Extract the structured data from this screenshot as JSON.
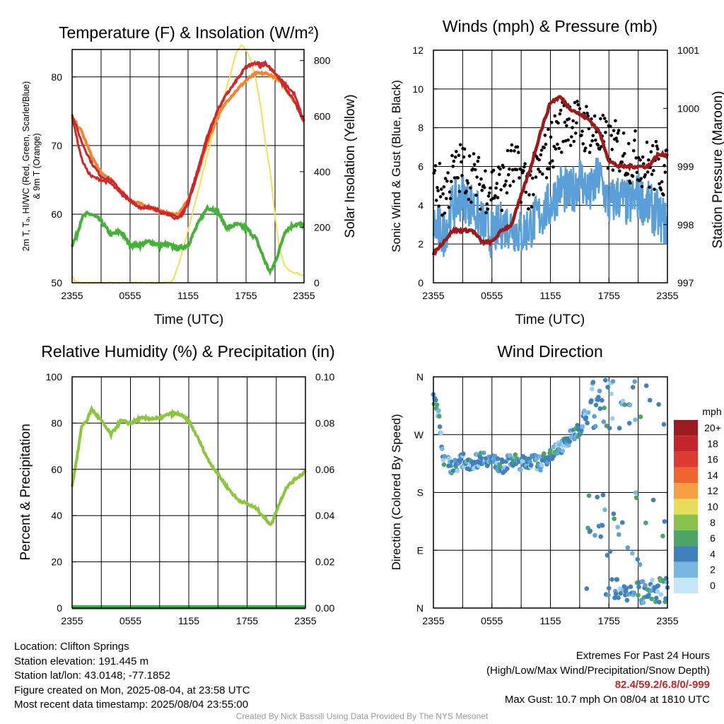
{
  "panels": {
    "temperature": {
      "title": "Temperature (F) & Insolation (W/m²)",
      "ylabel_left_line1": "2m T, Tₔ, HI/WC (Red, Green, Scarlet/Blue)",
      "ylabel_left_line2": "& 9m T (Orange)",
      "ylabel_right": "Solar Insolation (Yellow)",
      "xlabel": "Time (UTC)",
      "yticks_left": [
        "50",
        "60",
        "70",
        "80"
      ],
      "yticks_right": [
        "0",
        "200",
        "400",
        "600",
        "800"
      ],
      "xticks": [
        "2355",
        "0555",
        "1155",
        "1755",
        "2355"
      ]
    },
    "winds": {
      "title": "Winds (mph) & Pressure (mb)",
      "ylabel_left": "Sonic Wind & Gust (Blue, Black)",
      "ylabel_right": "Station Pressure (Maroon)",
      "xlabel": "Time (UTC)",
      "yticks_left": [
        "0",
        "2",
        "4",
        "6",
        "8",
        "10",
        "12"
      ],
      "yticks_right": [
        "997",
        "998",
        "999",
        "1000",
        "1001"
      ],
      "xticks": [
        "2355",
        "0555",
        "1155",
        "1755",
        "2355"
      ]
    },
    "humidity": {
      "title": "Relative Humidity (%) & Precipitation (in)",
      "ylabel_left": "Percent & Precipitation",
      "yticks_left": [
        "0",
        "20",
        "40",
        "60",
        "80",
        "100"
      ],
      "yticks_right": [
        "0.00",
        "0.02",
        "0.04",
        "0.06",
        "0.08",
        "0.10"
      ],
      "xticks": [
        "2355",
        "0555",
        "1155",
        "1755",
        "2355"
      ]
    },
    "direction": {
      "title": "Wind Direction",
      "ylabel_left": "Direction (Colored By Speed)",
      "yticks_left": [
        "N",
        "E",
        "S",
        "W",
        "N"
      ],
      "xticks": [
        "2355",
        "0555",
        "1155",
        "1755",
        "2355"
      ],
      "colorbar_title": "mph",
      "colorbar_labels": [
        "20+",
        "18",
        "16",
        "14",
        "12",
        "10",
        "8",
        "6",
        "4",
        "2",
        "0"
      ],
      "colorbar_colors": [
        "#9b1c20",
        "#c4252b",
        "#dd3a30",
        "#ef6530",
        "#f7a043",
        "#e6de5a",
        "#8bc24c",
        "#4aa566",
        "#3f80bd",
        "#78b6e0",
        "#c4e6f6"
      ]
    }
  },
  "colors": {
    "temp_2m": "#d0282a",
    "temp_9m": "#f5842e",
    "hiwc": "#c8282a",
    "dewpoint": "#44b236",
    "solar": "#f3df55",
    "wind": "#5a9fd8",
    "gust": "#000000",
    "pressure": "#9e1a1a",
    "humidity": "#8cc63e",
    "precip": "#3fae49"
  },
  "chart_data": [
    {
      "type": "line",
      "title": "Temperature (F) & Insolation (W/m²)",
      "xlabel": "Time (UTC)",
      "ylabel": "2m T, Tₔ, HI/WC (Red, Green, Scarlet/Blue) & 9m T (Orange)",
      "ylabel_right": "Solar Insolation (Yellow)",
      "x_ticks": [
        "2355",
        "0555",
        "1155",
        "1755",
        "2355"
      ],
      "x_hours_since_start": [
        0,
        6,
        12,
        18,
        24
      ],
      "ylim": [
        50,
        84
      ],
      "ylim_right": [
        0,
        800
      ],
      "series": [
        {
          "name": "2m T",
          "axis": "left",
          "x": [
            0,
            0.5,
            1,
            1.5,
            2,
            3,
            4,
            5,
            6,
            7,
            8,
            9,
            10,
            10.5,
            11,
            11.5,
            12,
            13,
            14,
            15,
            16,
            17,
            18,
            19,
            19.5,
            20,
            21,
            22,
            23,
            24
          ],
          "y": [
            74.5,
            71,
            68,
            66.5,
            65.5,
            65,
            64.5,
            63,
            62,
            61,
            61,
            60.5,
            60,
            59.5,
            59.5,
            60,
            62,
            66.5,
            71.5,
            75,
            77.5,
            79.5,
            81.5,
            82,
            81.5,
            82,
            80.5,
            79,
            77.5,
            73.5
          ]
        },
        {
          "name": "9m T",
          "axis": "left",
          "x": [
            0,
            1,
            2,
            3,
            4,
            5,
            6,
            7,
            8,
            9,
            10,
            11,
            12,
            13,
            14,
            15,
            16,
            17,
            18,
            19,
            20,
            21,
            22,
            23,
            24
          ],
          "y": [
            74,
            72,
            68.5,
            66,
            65,
            63.5,
            62,
            61.5,
            61,
            60.5,
            60,
            60,
            62,
            66,
            70.5,
            74,
            76.5,
            78,
            79.5,
            80.5,
            80.5,
            80,
            78.5,
            76.5,
            73.5
          ]
        },
        {
          "name": "HI/WC",
          "axis": "left",
          "x": [
            0,
            1,
            2,
            3,
            4,
            5,
            6,
            7,
            8,
            9,
            10,
            11,
            12,
            13,
            14,
            15,
            16,
            17,
            18,
            19,
            20,
            21,
            22,
            23,
            24
          ],
          "y": [
            74.5,
            70.5,
            67.5,
            65.5,
            65,
            63.5,
            62,
            61,
            61,
            60.5,
            60,
            59.5,
            61.5,
            66,
            71,
            75,
            77.5,
            79.5,
            81.5,
            82,
            82,
            80.5,
            78.5,
            76.5,
            73.5
          ]
        },
        {
          "name": "Td",
          "axis": "left",
          "x": [
            0,
            0.5,
            1,
            1.5,
            2,
            3,
            4,
            5,
            6,
            7,
            8,
            9,
            10,
            11,
            12,
            13,
            14,
            15,
            16,
            17,
            18,
            19,
            20,
            20.5,
            21,
            21.5,
            22,
            23,
            24
          ],
          "y": [
            55.5,
            57,
            59.5,
            60,
            60,
            59,
            57,
            57.5,
            55.5,
            55.5,
            56,
            55.5,
            55.5,
            55,
            55.5,
            58.5,
            61,
            60.5,
            58,
            58.5,
            58,
            56.5,
            53,
            51.5,
            53,
            55,
            57.5,
            58.5,
            58.5
          ]
        },
        {
          "name": "Solar",
          "axis": "right",
          "x": [
            0,
            0.3,
            1,
            3,
            5,
            7,
            9,
            10,
            10.5,
            11,
            12,
            13,
            14,
            15,
            16,
            16.5,
            17,
            17.5,
            18,
            18.5,
            19,
            19.5,
            20,
            20.5,
            21,
            21.5,
            22,
            22.5,
            23,
            23.5,
            24
          ],
          "y": [
            25,
            5,
            0,
            0,
            0,
            0,
            0,
            0,
            15,
            60,
            180,
            310,
            440,
            560,
            670,
            730,
            790,
            815,
            800,
            760,
            700,
            610,
            480,
            380,
            230,
            110,
            60,
            40,
            35,
            30,
            25
          ]
        }
      ]
    },
    {
      "type": "line",
      "title": "Winds (mph) & Pressure (mb)",
      "xlabel": "Time (UTC)",
      "ylabel": "Sonic Wind & Gust (Blue, Black)",
      "ylabel_right": "Station Pressure (Maroon)",
      "x_ticks": [
        "2355",
        "0555",
        "1155",
        "1755",
        "2355"
      ],
      "x_hours_since_start": [
        0,
        6,
        12,
        18,
        24
      ],
      "ylim": [
        0,
        12
      ],
      "ylim_right": [
        997,
        1001
      ],
      "series": [
        {
          "name": "Sonic Wind",
          "axis": "left",
          "x": [
            0,
            1,
            2,
            3,
            4,
            5,
            6,
            7,
            8,
            9,
            10,
            11,
            12,
            13,
            14,
            15,
            16,
            17,
            18,
            19,
            20,
            21,
            22,
            23,
            24
          ],
          "y": [
            3,
            2.5,
            4,
            4.5,
            4,
            3,
            2.5,
            3,
            3,
            2.5,
            3,
            3.5,
            4,
            5,
            4.5,
            5.5,
            4.5,
            5.5,
            4,
            4.5,
            4,
            4.5,
            4,
            3.5,
            3
          ]
        },
        {
          "name": "Gust",
          "axis": "left",
          "x": [
            0,
            1,
            2,
            3,
            4,
            5,
            6,
            7,
            8,
            9,
            10,
            11,
            12,
            13,
            14,
            15,
            16,
            17,
            18,
            19,
            20,
            21,
            22,
            23,
            24
          ],
          "y": [
            5.5,
            4.5,
            5.5,
            6,
            5.5,
            5,
            5,
            5,
            6,
            5.5,
            5,
            6,
            7,
            8,
            8.5,
            8,
            8,
            7.5,
            7,
            7,
            6.5,
            6.5,
            6,
            6,
            5.5
          ]
        },
        {
          "name": "Station Pressure",
          "axis": "right",
          "x": [
            0,
            1,
            2,
            3,
            4,
            5,
            6,
            7,
            8,
            9,
            10,
            11,
            12,
            13,
            14,
            15,
            16,
            17,
            18,
            19,
            20,
            21,
            22,
            23,
            24
          ],
          "y": [
            997.5,
            997.7,
            997.9,
            997.9,
            997.9,
            997.7,
            997.7,
            997.9,
            998.0,
            998.5,
            999.0,
            999.6,
            1000.1,
            1000.2,
            1000.0,
            999.9,
            999.8,
            999.6,
            999.1,
            999.0,
            999.0,
            999.0,
            999.0,
            999.2,
            999.2
          ]
        }
      ]
    },
    {
      "type": "line",
      "title": "Relative Humidity (%) & Precipitation (in)",
      "ylabel": "Percent & Precipitation",
      "x_ticks": [
        "2355",
        "0555",
        "1155",
        "1755",
        "2355"
      ],
      "x_hours_since_start": [
        0,
        6,
        12,
        18,
        24
      ],
      "ylim": [
        0,
        100
      ],
      "ylim_right": [
        0,
        0.1
      ],
      "series": [
        {
          "name": "Relative Humidity",
          "axis": "left",
          "x": [
            0,
            0.5,
            1,
            1.5,
            2,
            3,
            4,
            5,
            6,
            7,
            8,
            9,
            10,
            11,
            12,
            13,
            14,
            15,
            16,
            17,
            18,
            19,
            20,
            20.5,
            21,
            21.5,
            22,
            23,
            24
          ],
          "y": [
            53,
            65,
            79,
            81,
            86,
            81,
            75,
            81,
            80,
            82,
            82,
            82,
            84,
            84,
            81,
            73,
            64,
            58,
            52,
            47,
            45,
            43,
            38,
            36,
            42,
            47,
            52,
            56,
            59
          ]
        },
        {
          "name": "Precipitation",
          "axis": "right",
          "x": [
            0,
            24
          ],
          "y": [
            0,
            0
          ]
        }
      ]
    },
    {
      "type": "scatter",
      "title": "Wind Direction",
      "ylabel": "Direction (Colored By Speed)",
      "x_ticks": [
        "2355",
        "0555",
        "1155",
        "1755",
        "2355"
      ],
      "x_hours_since_start": [
        0,
        6,
        12,
        18,
        24
      ],
      "y_ticks": [
        "N",
        "E",
        "S",
        "W",
        "N"
      ],
      "ylim": [
        0,
        360
      ],
      "colorbar": {
        "title": "mph",
        "labels": [
          "20+",
          "18",
          "16",
          "14",
          "12",
          "10",
          "8",
          "6",
          "4",
          "2",
          "0"
        ]
      },
      "series": [
        {
          "name": "Direction",
          "x": [
            0,
            0.3,
            0.6,
            1,
            1.5,
            2,
            3,
            4,
            5,
            6,
            7,
            8,
            9,
            10,
            11,
            12,
            13,
            14,
            15,
            15.5,
            16,
            16.5,
            17,
            17.5,
            18,
            18.5,
            19,
            19.5,
            20,
            20.5,
            21,
            21.5,
            22,
            22.5,
            23,
            23.5,
            24
          ],
          "y": [
            330,
            315,
            300,
            230,
            225,
            220,
            230,
            225,
            235,
            230,
            220,
            230,
            225,
            230,
            225,
            240,
            250,
            265,
            280,
            300,
            320,
            335,
            310,
            290,
            340,
            350,
            345,
            5,
            40,
            35,
            20,
            15,
            10,
            25,
            15,
            10,
            20
          ]
        }
      ]
    }
  ],
  "footer": {
    "location": "Location: Clifton Springs",
    "elevation": "Station elevation: 191.445 m",
    "latlon": "Station lat/lon: 43.0148; -77.1852",
    "created": "Figure created on Mon, 2025-08-04, at 23:58 UTC",
    "recent": "Most recent data timestamp: 2025/08/04 23:55:00",
    "extremes_title": "Extremes For Past 24 Hours",
    "extremes_legend": "(High/Low/Max Wind/Precipitation/Snow Depth)",
    "extremes_values": "82.4/59.2/6.8/0/-999",
    "max_gust": "Max Gust: 10.7 mph On 08/04 at 1810 UTC",
    "credit": "Created By Nick Bassill Using Data Provided By The NYS Mesonet"
  }
}
